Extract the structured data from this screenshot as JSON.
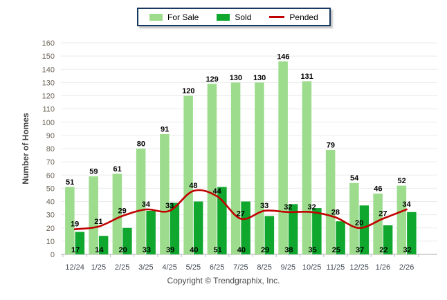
{
  "legend": {
    "items": [
      {
        "label": "For Sale",
        "swatch": "light-green-swatch",
        "color": "#9CDC8C"
      },
      {
        "label": "Sold",
        "swatch": "dark-green-swatch",
        "color": "#10A72F"
      },
      {
        "label": "Pended",
        "swatch": "red-line-swatch",
        "color": "#C00000"
      }
    ]
  },
  "footer": {
    "text": "Copyright © Trendgraphix, Inc."
  },
  "chart_data": {
    "type": "bar",
    "title": "",
    "categories": [
      "12/24",
      "1/25",
      "2/25",
      "3/25",
      "4/25",
      "5/25",
      "6/25",
      "7/25",
      "8/25",
      "9/25",
      "10/25",
      "11/25",
      "12/25",
      "1/26",
      "2/26"
    ],
    "series": [
      {
        "name": "For Sale",
        "type": "bar",
        "color": "#9CDC8C",
        "values": [
          51,
          59,
          61,
          80,
          91,
          120,
          129,
          130,
          130,
          146,
          131,
          79,
          54,
          46,
          52
        ]
      },
      {
        "name": "Sold",
        "type": "bar",
        "color": "#10A72F",
        "values": [
          17,
          14,
          20,
          33,
          39,
          40,
          51,
          40,
          29,
          38,
          35,
          25,
          37,
          22,
          32
        ]
      },
      {
        "name": "Pended",
        "type": "line",
        "color": "#C00000",
        "values": [
          19,
          21,
          29,
          34,
          33,
          48,
          44,
          27,
          33,
          32,
          32,
          28,
          20,
          27,
          34
        ]
      }
    ],
    "xlabel": "",
    "ylabel": "Number of Homes",
    "ylim": [
      0,
      160
    ],
    "ytick_step": 10,
    "grid": true,
    "legend_position": "top",
    "value_labels": true
  }
}
